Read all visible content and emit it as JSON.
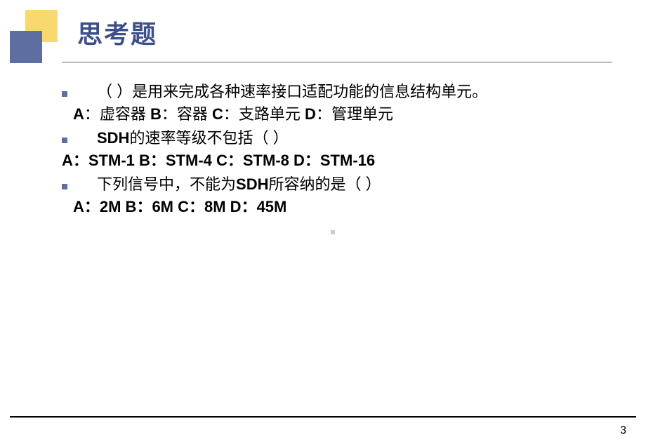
{
  "title": "思考题",
  "questions": [
    {
      "text": "（      ）是用来完成各种速率接口适配功能的信息结构单元。",
      "options": "A：虚容器   B：容器  C：支路单元  D：管理单元",
      "optionsBold": false
    },
    {
      "text": "SDH的速率等级不包括（     ）",
      "textBold": true,
      "options": "A：STM-1   B：STM-4    C：STM-8    D：STM-16",
      "optionsBold": true
    },
    {
      "text": "下列信号中，不能为SDH所容纳的是（      ）",
      "textBold": false,
      "options": "A：2M      B：6M      C：8M      D：45M",
      "optionsBold": true
    }
  ],
  "pageNumber": "3",
  "colors": {
    "titleColor": "#3c4f8a",
    "bulletColor": "#5c6fa0",
    "yellowSquare": "#f7d96f",
    "blueSquare": "#5c6fa0"
  }
}
